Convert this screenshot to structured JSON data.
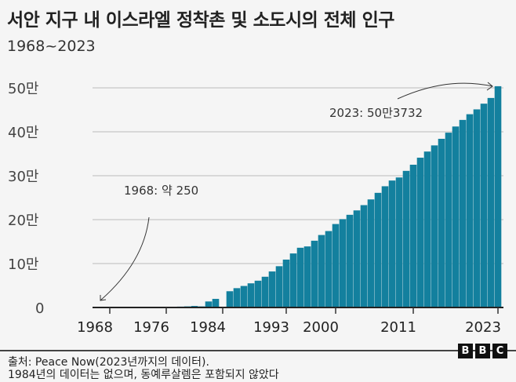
{
  "title": "서안 지구 내 이스라엘 정착촌 및 소도시의 전체 인구",
  "subtitle": "1968~2023",
  "chart_data": {
    "type": "bar",
    "title": "서안 지구 내 이스라엘 정착촌 및 소도시의 전체 인구",
    "subtitle": "1968~2023",
    "xlabel": "",
    "ylabel": "",
    "ylim": [
      0,
      500000
    ],
    "grid": true,
    "color": "#13809e",
    "y_ticks": [
      {
        "value": 0,
        "label": "0"
      },
      {
        "value": 100000,
        "label": "10만"
      },
      {
        "value": 200000,
        "label": "20만"
      },
      {
        "value": 300000,
        "label": "30만"
      },
      {
        "value": 400000,
        "label": "40만"
      },
      {
        "value": 500000,
        "label": "50만"
      }
    ],
    "x_ticks": [
      "1968",
      "1976",
      "1984",
      "1993",
      "2000",
      "2011",
      "2023"
    ],
    "x": [
      1968,
      1969,
      1970,
      1971,
      1972,
      1973,
      1974,
      1975,
      1976,
      1977,
      1978,
      1979,
      1980,
      1981,
      1982,
      1983,
      1985,
      1986,
      1987,
      1988,
      1989,
      1990,
      1991,
      1992,
      1993,
      1994,
      1995,
      1996,
      1997,
      1998,
      1999,
      2000,
      2001,
      2002,
      2003,
      2004,
      2005,
      2006,
      2007,
      2008,
      2009,
      2010,
      2011,
      2012,
      2013,
      2014,
      2015,
      2016,
      2017,
      2018,
      2019,
      2020,
      2021,
      2022,
      2023
    ],
    "values": [
      250,
      300,
      400,
      500,
      600,
      700,
      800,
      900,
      1000,
      1500,
      2000,
      2500,
      3500,
      2500,
      13700,
      19600,
      37000,
      44000,
      49000,
      55000,
      61000,
      70000,
      82000,
      94000,
      109000,
      123000,
      136000,
      139000,
      152000,
      165000,
      174000,
      190000,
      201000,
      211000,
      221000,
      233000,
      246000,
      261000,
      276000,
      289000,
      296000,
      311000,
      325000,
      341000,
      355000,
      369000,
      384000,
      398000,
      412000,
      427000,
      440000,
      451000,
      464000,
      477000,
      503732
    ],
    "missing": [
      "1984"
    ],
    "annotations": [
      {
        "text": "1968: 약 250",
        "year": 1968
      },
      {
        "text": "2023: 50만3732",
        "year": 2023
      }
    ]
  },
  "footer": {
    "source": "출처: Peace Now(2023년까지의 데이터).",
    "note": "1984년의 데이터는 없으며, 동예루살렘은 포함되지 않았다",
    "logo": [
      "B",
      "B",
      "C"
    ]
  }
}
